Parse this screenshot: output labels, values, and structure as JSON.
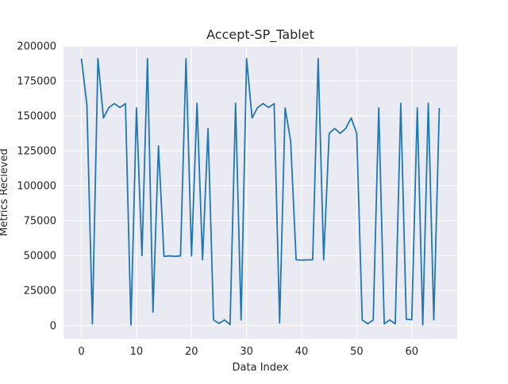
{
  "chart_data": {
    "type": "line",
    "title": "Accept-SP_Tablet",
    "xlabel": "Data Index",
    "ylabel": "Metrics Recieved",
    "xlim": [
      -3.25,
      68.25
    ],
    "ylim": [
      -9500,
      200000
    ],
    "x_ticks": [
      0,
      10,
      20,
      30,
      40,
      50,
      60
    ],
    "x_tick_labels": [
      "0",
      "10",
      "20",
      "30",
      "40",
      "50",
      "60"
    ],
    "y_ticks": [
      0,
      25000,
      50000,
      75000,
      100000,
      125000,
      150000,
      175000,
      200000
    ],
    "y_tick_labels": [
      "0",
      "25000",
      "50000",
      "75000",
      "100000",
      "125000",
      "150000",
      "175000",
      "200000"
    ],
    "grid": true,
    "background_color": "#eaeaf2",
    "line_color": "#1f77b4",
    "series": [
      {
        "x": [
          0,
          1,
          2,
          3,
          4,
          5,
          6,
          7,
          8,
          9,
          10,
          11,
          12,
          13,
          14,
          15,
          16,
          17,
          18,
          19,
          20,
          21,
          22,
          23,
          24,
          25,
          26,
          27,
          28,
          29,
          30,
          31,
          32,
          33,
          34,
          35,
          36,
          37,
          38,
          39,
          40,
          41,
          42,
          43,
          44,
          45,
          46,
          47,
          48,
          49,
          50,
          51,
          52,
          53,
          54,
          55,
          56,
          57,
          58,
          59,
          60,
          61,
          62,
          63,
          64,
          65
        ],
        "values": [
          191000,
          158000,
          1200,
          191000,
          148500,
          156000,
          158800,
          156000,
          158800,
          400,
          155700,
          50000,
          191000,
          9500,
          128500,
          49500,
          49800,
          49500,
          49800,
          191000,
          49800,
          159000,
          47000,
          140800,
          4000,
          1500,
          4000,
          600,
          159000,
          4000,
          191000,
          148500,
          156000,
          158800,
          156000,
          158800,
          1800,
          155700,
          132000,
          47000,
          46800,
          47000,
          47000,
          191000,
          47000,
          137500,
          141000,
          137500,
          141000,
          148500,
          137500,
          4000,
          1200,
          4000,
          155700,
          1200,
          4000,
          1200,
          159000,
          4500,
          4200,
          155700,
          400,
          159000,
          4000,
          155700
        ]
      }
    ]
  }
}
